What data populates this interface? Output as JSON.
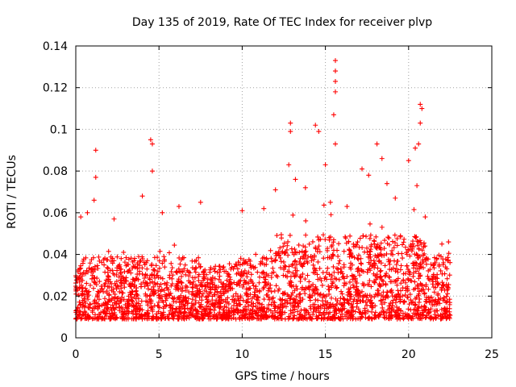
{
  "chart_data": {
    "type": "scatter",
    "title": "Day 135 of 2019, Rate Of TEC Index for receiver plvp",
    "xlabel": "GPS time / hours",
    "ylabel": "ROTI / TECUs",
    "xlim": [
      0,
      25
    ],
    "ylim": [
      0,
      0.14
    ],
    "x_ticks": [
      0,
      5,
      10,
      15,
      20,
      25
    ],
    "x_tick_labels": [
      "0",
      "5",
      "10",
      "15",
      "20",
      "25"
    ],
    "y_ticks": [
      0,
      0.02,
      0.04,
      0.06,
      0.08,
      0.1,
      0.12,
      0.14
    ],
    "y_tick_labels": [
      "0",
      "0.02",
      "0.04",
      "0.06",
      "0.08",
      "0.1",
      "0.12",
      "0.14"
    ],
    "grid": true,
    "marker": "+",
    "color": "#ff0000",
    "series": [
      {
        "name": "ROTI",
        "note": "Dense band of points between ~0.005 and ~0.04 TECU/s for 0–22.5 h; notable peaks listed below",
        "x_range": [
          0,
          22.5
        ],
        "band": [
          0.005,
          0.045
        ],
        "peaks": [
          {
            "x": 0.3,
            "y": 0.058
          },
          {
            "x": 0.7,
            "y": 0.06
          },
          {
            "x": 1.2,
            "y": 0.09
          },
          {
            "x": 1.2,
            "y": 0.077
          },
          {
            "x": 1.1,
            "y": 0.066
          },
          {
            "x": 2.3,
            "y": 0.057
          },
          {
            "x": 4.0,
            "y": 0.068
          },
          {
            "x": 4.5,
            "y": 0.095
          },
          {
            "x": 4.6,
            "y": 0.093
          },
          {
            "x": 4.6,
            "y": 0.08
          },
          {
            "x": 5.2,
            "y": 0.06
          },
          {
            "x": 6.2,
            "y": 0.063
          },
          {
            "x": 7.5,
            "y": 0.065
          },
          {
            "x": 10.0,
            "y": 0.061
          },
          {
            "x": 11.3,
            "y": 0.062
          },
          {
            "x": 12.0,
            "y": 0.071
          },
          {
            "x": 12.8,
            "y": 0.083
          },
          {
            "x": 12.9,
            "y": 0.103
          },
          {
            "x": 12.9,
            "y": 0.099
          },
          {
            "x": 13.2,
            "y": 0.076
          },
          {
            "x": 13.8,
            "y": 0.072
          },
          {
            "x": 14.4,
            "y": 0.102
          },
          {
            "x": 14.6,
            "y": 0.099
          },
          {
            "x": 15.0,
            "y": 0.083
          },
          {
            "x": 15.3,
            "y": 0.065
          },
          {
            "x": 15.6,
            "y": 0.133
          },
          {
            "x": 15.6,
            "y": 0.128
          },
          {
            "x": 15.6,
            "y": 0.123
          },
          {
            "x": 15.6,
            "y": 0.118
          },
          {
            "x": 15.5,
            "y": 0.107
          },
          {
            "x": 15.6,
            "y": 0.093
          },
          {
            "x": 16.3,
            "y": 0.063
          },
          {
            "x": 17.2,
            "y": 0.081
          },
          {
            "x": 17.6,
            "y": 0.078
          },
          {
            "x": 18.1,
            "y": 0.093
          },
          {
            "x": 18.4,
            "y": 0.086
          },
          {
            "x": 18.7,
            "y": 0.074
          },
          {
            "x": 19.2,
            "y": 0.067
          },
          {
            "x": 20.0,
            "y": 0.085
          },
          {
            "x": 20.4,
            "y": 0.091
          },
          {
            "x": 20.7,
            "y": 0.103
          },
          {
            "x": 20.7,
            "y": 0.112
          },
          {
            "x": 20.8,
            "y": 0.11
          },
          {
            "x": 20.6,
            "y": 0.093
          },
          {
            "x": 20.5,
            "y": 0.073
          },
          {
            "x": 21.0,
            "y": 0.058
          },
          {
            "x": 22.0,
            "y": 0.045
          },
          {
            "x": 22.4,
            "y": 0.046
          }
        ]
      }
    ]
  }
}
